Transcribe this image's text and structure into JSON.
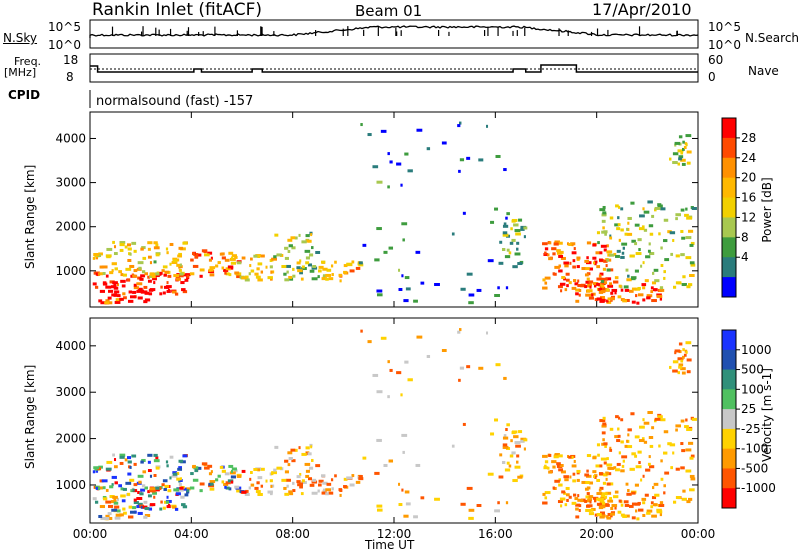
{
  "header": {
    "title": "Rankin Inlet (fitACF)",
    "beam": "Beam 01",
    "date": "17/Apr/2010"
  },
  "top_panels": {
    "nsky_label": "N.Sky",
    "nsearch_label": "N.Search",
    "nsky_ticks": [
      "10^5",
      "10^0"
    ],
    "nsearch_ticks": [
      "10^5",
      "10^0"
    ],
    "freq_label": "Freq.",
    "freq_unit": "[MHz]",
    "freq_ticks": [
      "18",
      "8"
    ],
    "nave_label": "Nave",
    "nave_ticks": [
      "60",
      "0"
    ],
    "cpid_label": "CPID",
    "cpid_text": "normalsound (fast) -157"
  },
  "chart_data": [
    {
      "type": "heatmap",
      "name": "Power",
      "ylabel": "Slant Range [km]",
      "yticks": [
        1000,
        2000,
        3000,
        4000
      ],
      "ylim": [
        180,
        4600
      ],
      "xlim": [
        0,
        24
      ],
      "colorbar": {
        "label": "Power [dB]",
        "ticks": [
          "28",
          "24",
          "20",
          "16",
          "12",
          "8",
          "4"
        ],
        "colors": [
          "#ff0000",
          "#ff4a00",
          "#ff9000",
          "#ffb800",
          "#f2d000",
          "#a8c850",
          "#3e9c3e",
          "#2a7c7c",
          "#0000ff"
        ]
      }
    },
    {
      "type": "heatmap",
      "name": "Velocity",
      "ylabel": "Slant Range [km]",
      "yticks": [
        1000,
        2000,
        3000,
        4000
      ],
      "ylim": [
        180,
        4600
      ],
      "xlim": [
        0,
        24
      ],
      "xlabel": "Time UT",
      "xticks": [
        "00:00",
        "04:00",
        "08:00",
        "12:00",
        "16:00",
        "20:00",
        "00:00"
      ],
      "colorbar": {
        "label": "Velocity [m s-1]",
        "ticks": [
          "1000",
          "500",
          "100",
          "25",
          "-25",
          "-100",
          "-500",
          "-1000"
        ],
        "colors": [
          "#1a33ff",
          "#2050b0",
          "#30907a",
          "#50c060",
          "#c8c8c8",
          "#ffd200",
          "#ff9a00",
          "#ff5500",
          "#ff0000"
        ]
      }
    }
  ]
}
